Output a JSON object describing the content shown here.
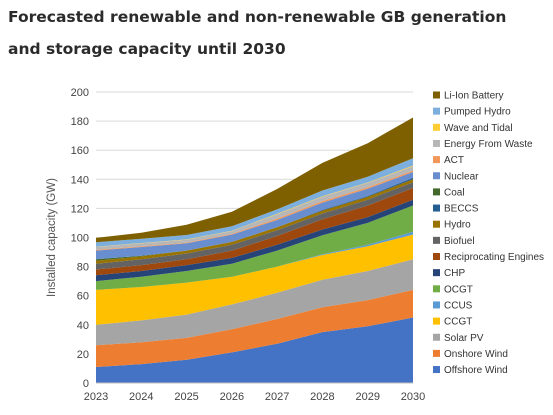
{
  "title_line1": "Forecasted renewable and non-renewable GB generation",
  "title_line2": "and storage capacity until 2030",
  "chart_data": {
    "type": "area",
    "stacked": true,
    "xlabel": "",
    "ylabel": "Installed capacity (GW)",
    "x": [
      "2023",
      "2024",
      "2025",
      "2026",
      "2027",
      "2028",
      "2029",
      "2030"
    ],
    "yticks": [
      0,
      20,
      40,
      60,
      80,
      100,
      120,
      140,
      160,
      180,
      200
    ],
    "ylim": [
      0,
      200
    ],
    "grid": true,
    "legend_position": "right",
    "series": [
      {
        "name": "Offshore Wind",
        "color": "#4472c4",
        "values": [
          11,
          13,
          16,
          21,
          27,
          35,
          39,
          45
        ]
      },
      {
        "name": "Onshore Wind",
        "color": "#ed7d31",
        "values": [
          15,
          15,
          15,
          16,
          17,
          17,
          18,
          19
        ]
      },
      {
        "name": "Solar PV",
        "color": "#a5a5a5",
        "values": [
          14,
          15,
          16,
          17,
          18,
          19,
          20,
          21
        ]
      },
      {
        "name": "CCGT",
        "color": "#ffc000",
        "values": [
          24,
          23,
          22,
          19,
          18,
          17,
          17,
          17
        ]
      },
      {
        "name": "CCUS",
        "color": "#5b9bd5",
        "values": [
          0,
          0,
          0,
          0,
          0,
          0.5,
          1,
          2
        ]
      },
      {
        "name": "OCGT",
        "color": "#70ad47",
        "values": [
          6,
          7,
          8,
          9,
          11,
          13,
          15,
          18
        ]
      },
      {
        "name": "CHP",
        "color": "#264478",
        "values": [
          4,
          4,
          4,
          4,
          4,
          4,
          4,
          4
        ]
      },
      {
        "name": "Reciprocating Engines",
        "color": "#9e480e",
        "values": [
          4,
          4,
          4,
          5,
          6,
          7,
          8,
          8
        ]
      },
      {
        "name": "Biofuel",
        "color": "#636363",
        "values": [
          4,
          4,
          4,
          4,
          4,
          4,
          4,
          4
        ]
      },
      {
        "name": "Hydro",
        "color": "#997300",
        "values": [
          2,
          2,
          2,
          2,
          2,
          2,
          2,
          2
        ]
      },
      {
        "name": "BECCS",
        "color": "#255e91",
        "values": [
          0,
          0,
          0,
          0,
          0,
          0.5,
          0.5,
          1
        ]
      },
      {
        "name": "Coal",
        "color": "#43682b",
        "values": [
          1,
          0.5,
          0,
          0,
          0,
          0,
          0,
          0
        ]
      },
      {
        "name": "Nuclear",
        "color": "#698ed0",
        "values": [
          6,
          6,
          5,
          5,
          5,
          5,
          5,
          4
        ]
      },
      {
        "name": "ACT",
        "color": "#f1975a",
        "values": [
          0.5,
          0.5,
          0.5,
          0.5,
          1,
          1,
          1,
          1
        ]
      },
      {
        "name": "Energy From Waste",
        "color": "#b7b7b7",
        "values": [
          2,
          2,
          2,
          2,
          3,
          3,
          3,
          3
        ]
      },
      {
        "name": "Wave and Tidal",
        "color": "#ffcd33",
        "values": [
          0.2,
          0.2,
          0.2,
          0.2,
          0.3,
          0.3,
          0.3,
          0.5
        ]
      },
      {
        "name": "Pumped Hydro",
        "color": "#7cafdd",
        "values": [
          3,
          3,
          3,
          3,
          3,
          4,
          4,
          5
        ]
      },
      {
        "name": "Li-Ion Battery",
        "color": "#7f6000",
        "values": [
          3,
          4,
          7,
          10,
          14,
          19,
          23,
          28
        ]
      }
    ]
  }
}
